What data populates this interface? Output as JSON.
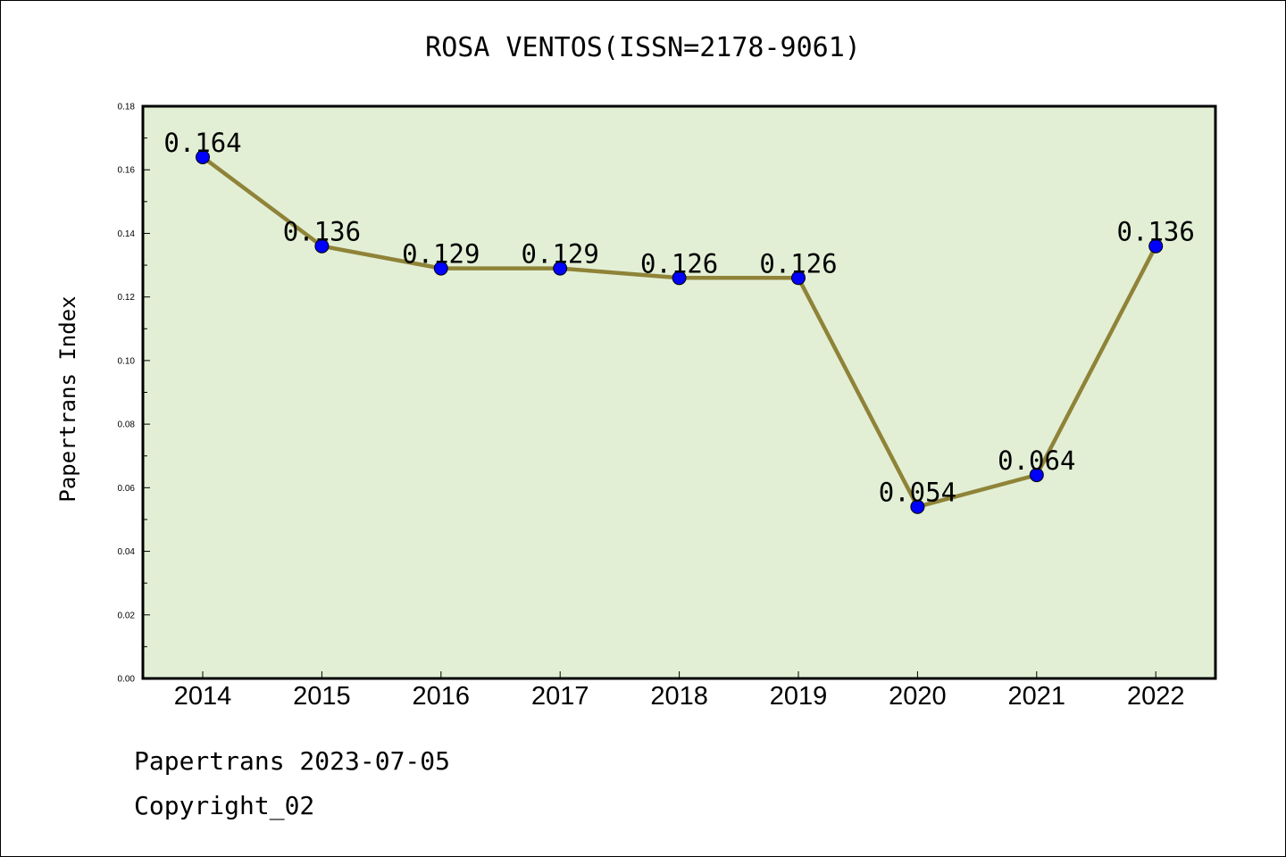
{
  "title": "ROSA VENTOS(ISSN=2178-9061)",
  "footer": {
    "line1": "Papertrans 2023-07-05",
    "line2": "Copyright_02"
  },
  "colors": {
    "plot_bg": "#e2efd5",
    "line": "#8f8338",
    "marker": "#0000ff"
  },
  "chart_data": {
    "type": "line",
    "title": "ROSA VENTOS(ISSN=2178-9061)",
    "xlabel": "",
    "ylabel": "Papertrans Index",
    "categories": [
      "2014",
      "2015",
      "2016",
      "2017",
      "2018",
      "2019",
      "2020",
      "2021",
      "2022"
    ],
    "values": [
      0.164,
      0.136,
      0.129,
      0.129,
      0.126,
      0.126,
      0.054,
      0.064,
      0.136
    ],
    "data_labels": [
      "0.164",
      "0.136",
      "0.129",
      "0.129",
      "0.126",
      "0.126",
      "0.054",
      "0.064",
      "0.136"
    ],
    "ylim": [
      0,
      0.18
    ],
    "yticks": [
      "0.00",
      "0.02",
      "0.04",
      "0.06",
      "0.08",
      "0.10",
      "0.12",
      "0.14",
      "0.16",
      "0.18"
    ],
    "grid": false,
    "legend": "none"
  }
}
